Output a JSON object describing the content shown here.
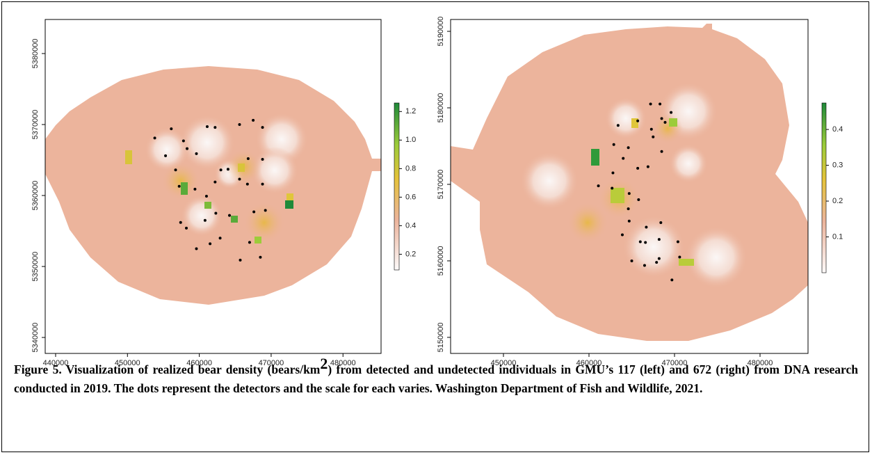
{
  "chart_data": [
    {
      "type": "scatter",
      "color": "#000000",
      "xlim": [
        438550,
        485300
      ],
      "ylim": [
        5337750,
        5384800
      ],
      "xticks": [
        440000,
        450000,
        460000,
        470000,
        480000
      ],
      "yticks": [
        5340000,
        5350000,
        5360000,
        5370000,
        5380000
      ],
      "x": [
        453800,
        456100,
        455300,
        457800,
        458300,
        459600,
        461100,
        462200,
        465600,
        467500,
        468800,
        463000,
        464000,
        462200,
        456700,
        465600,
        457200,
        459400,
        461000,
        460800,
        462300,
        464200,
        457400,
        458200,
        461500,
        462900,
        459600,
        466800,
        468800,
        466700,
        468800,
        467600,
        469200,
        467000,
        468500,
        465700
      ],
      "y": [
        5368100,
        5369400,
        5365600,
        5367700,
        5366600,
        5365900,
        5369700,
        5369600,
        5370000,
        5370600,
        5369600,
        5363600,
        5363700,
        5361900,
        5363600,
        5362300,
        5361300,
        5360900,
        5359900,
        5356500,
        5357500,
        5357200,
        5356200,
        5355400,
        5353200,
        5354000,
        5352500,
        5365200,
        5365100,
        5361600,
        5361600,
        5357700,
        5357900,
        5353400,
        5351300,
        5350900
      ],
      "colorbar": {
        "lim": [
          0.09,
          1.26
        ],
        "ticks": [
          0.2,
          0.4,
          0.6,
          0.8,
          {
            "value": 1,
            "label": "1.0"
          },
          1.2
        ]
      }
    },
    {
      "type": "scatter",
      "color": "#000000",
      "xlim": [
        443820,
        485610
      ],
      "ylim": [
        5147900,
        5191550
      ],
      "xticks": [
        450000,
        460000,
        470000,
        480000
      ],
      "yticks": [
        5150000,
        5160000,
        5170000,
        5180000,
        5190000
      ],
      "x": [
        467200,
        468300,
        465700,
        468500,
        469600,
        468900,
        467300,
        463400,
        467500,
        462900,
        468500,
        464600,
        464000,
        465700,
        466900,
        462800,
        461100,
        462700,
        464700,
        465800,
        464600,
        464700,
        466700,
        468400,
        463900,
        466000,
        466600,
        468200,
        468200,
        467900,
        465000,
        466500,
        470400,
        470600,
        469700
      ],
      "y": [
        5180500,
        5180500,
        5178300,
        5178600,
        5179400,
        5178100,
        5177200,
        5177700,
        5176200,
        5175200,
        5174300,
        5174800,
        5173400,
        5172100,
        5172300,
        5171500,
        5169800,
        5169500,
        5168800,
        5168000,
        5166800,
        5165200,
        5164400,
        5165000,
        5163400,
        5162500,
        5162400,
        5162800,
        5160300,
        5159800,
        5160000,
        5159400,
        5162500,
        5160500,
        5157500
      ],
      "colorbar": {
        "lim": [
          0.0,
          0.474
        ],
        "ticks": [
          0.1,
          0.2,
          0.3,
          0.4
        ]
      }
    }
  ],
  "caption": {
    "before": "Figure 5. Visualization of realized bear density (bears/km",
    "superscript": "2",
    "after": ") from detected and undetected individuals in GMU’s 117 (left) and 672 (right) from DNA research conducted in 2019. The dots represent the detectors and the scale for each varies.  Washington Department of Fish and Wildlife, 2021."
  }
}
